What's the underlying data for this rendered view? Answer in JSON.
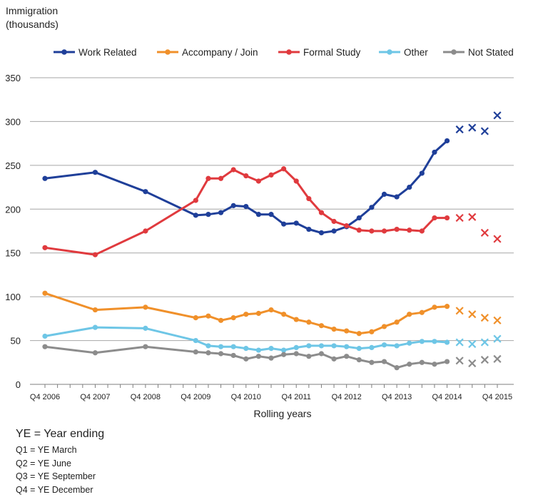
{
  "chart_data": {
    "type": "line",
    "ylabel": [
      "Immigration",
      "(thousands)"
    ],
    "xlabel": "Rolling years",
    "ylim": [
      0,
      350
    ],
    "yticks": [
      0,
      50,
      100,
      150,
      200,
      250,
      300,
      350
    ],
    "grid": "horizontal",
    "legend_position": "top",
    "x_tick_labels": [
      "Q4 2006",
      "Q4 2007",
      "Q4 2008",
      "Q4 2009",
      "Q4 2010",
      "Q4 2011",
      "Q4 2012",
      "Q4 2013",
      "Q4 2014",
      "Q4 2015"
    ],
    "x_tick_positions": [
      0,
      4,
      8,
      12,
      16,
      20,
      24,
      28,
      32,
      36
    ],
    "series": [
      {
        "name": "Work Related",
        "color": "#1f3f99",
        "points": [
          [
            0,
            235
          ],
          [
            4,
            242
          ],
          [
            8,
            220
          ],
          [
            12,
            193
          ],
          [
            13,
            194
          ],
          [
            14,
            196
          ],
          [
            15,
            204
          ],
          [
            16,
            203
          ],
          [
            17,
            194
          ],
          [
            18,
            194
          ],
          [
            19,
            183
          ],
          [
            20,
            184
          ],
          [
            21,
            177
          ],
          [
            22,
            173
          ],
          [
            23,
            175
          ],
          [
            24,
            180
          ],
          [
            25,
            190
          ],
          [
            26,
            202
          ],
          [
            27,
            217
          ],
          [
            28,
            214
          ],
          [
            29,
            225
          ],
          [
            30,
            241
          ],
          [
            31,
            265
          ],
          [
            32,
            278
          ]
        ],
        "projected": [
          [
            33,
            291
          ],
          [
            34,
            293
          ],
          [
            35,
            289
          ],
          [
            36,
            307
          ]
        ]
      },
      {
        "name": "Accompany / Join",
        "color": "#f0902a",
        "points": [
          [
            0,
            104
          ],
          [
            4,
            85
          ],
          [
            8,
            88
          ],
          [
            12,
            76
          ],
          [
            13,
            78
          ],
          [
            14,
            73
          ],
          [
            15,
            76
          ],
          [
            16,
            80
          ],
          [
            17,
            81
          ],
          [
            18,
            85
          ],
          [
            19,
            80
          ],
          [
            20,
            74
          ],
          [
            21,
            71
          ],
          [
            22,
            67
          ],
          [
            23,
            63
          ],
          [
            24,
            61
          ],
          [
            25,
            58
          ],
          [
            26,
            60
          ],
          [
            27,
            66
          ],
          [
            28,
            71
          ],
          [
            29,
            80
          ],
          [
            30,
            82
          ],
          [
            31,
            88
          ],
          [
            32,
            89
          ]
        ],
        "projected": [
          [
            33,
            84
          ],
          [
            34,
            80
          ],
          [
            35,
            76
          ],
          [
            36,
            73
          ]
        ]
      },
      {
        "name": "Formal Study",
        "color": "#e03a3e",
        "points": [
          [
            0,
            156
          ],
          [
            4,
            148
          ],
          [
            8,
            175
          ],
          [
            12,
            210
          ],
          [
            13,
            235
          ],
          [
            14,
            235
          ],
          [
            15,
            245
          ],
          [
            16,
            238
          ],
          [
            17,
            232
          ],
          [
            18,
            239
          ],
          [
            19,
            246
          ],
          [
            20,
            232
          ],
          [
            21,
            212
          ],
          [
            22,
            196
          ],
          [
            23,
            186
          ],
          [
            24,
            181
          ],
          [
            25,
            176
          ],
          [
            26,
            175
          ],
          [
            27,
            175
          ],
          [
            28,
            177
          ],
          [
            29,
            176
          ],
          [
            30,
            175
          ],
          [
            31,
            190
          ],
          [
            32,
            190
          ]
        ],
        "projected": [
          [
            33,
            190
          ],
          [
            34,
            191
          ],
          [
            35,
            173
          ],
          [
            36,
            166
          ]
        ]
      },
      {
        "name": "Other",
        "color": "#6ec6e6",
        "points": [
          [
            0,
            55
          ],
          [
            4,
            65
          ],
          [
            8,
            64
          ],
          [
            12,
            50
          ],
          [
            13,
            44
          ],
          [
            14,
            43
          ],
          [
            15,
            43
          ],
          [
            16,
            41
          ],
          [
            17,
            39
          ],
          [
            18,
            41
          ],
          [
            19,
            39
          ],
          [
            20,
            42
          ],
          [
            21,
            44
          ],
          [
            22,
            44
          ],
          [
            23,
            44
          ],
          [
            24,
            43
          ],
          [
            25,
            41
          ],
          [
            26,
            42
          ],
          [
            27,
            45
          ],
          [
            28,
            44
          ],
          [
            29,
            47
          ],
          [
            30,
            49
          ],
          [
            31,
            49
          ],
          [
            32,
            48
          ]
        ],
        "projected": [
          [
            33,
            48
          ],
          [
            34,
            46
          ],
          [
            35,
            48
          ],
          [
            36,
            52
          ]
        ]
      },
      {
        "name": "Not Stated",
        "color": "#8c8c8c",
        "points": [
          [
            0,
            43
          ],
          [
            4,
            36
          ],
          [
            8,
            43
          ],
          [
            12,
            37
          ],
          [
            13,
            36
          ],
          [
            14,
            35
          ],
          [
            15,
            33
          ],
          [
            16,
            29
          ],
          [
            17,
            32
          ],
          [
            18,
            30
          ],
          [
            19,
            34
          ],
          [
            20,
            35
          ],
          [
            21,
            32
          ],
          [
            22,
            35
          ],
          [
            23,
            29
          ],
          [
            24,
            32
          ],
          [
            25,
            28
          ],
          [
            26,
            25
          ],
          [
            27,
            26
          ],
          [
            28,
            19
          ],
          [
            29,
            23
          ],
          [
            30,
            25
          ],
          [
            31,
            23
          ],
          [
            32,
            26
          ]
        ],
        "projected": [
          [
            33,
            27
          ],
          [
            34,
            24
          ],
          [
            35,
            28
          ],
          [
            36,
            29
          ]
        ]
      }
    ]
  },
  "notes": {
    "heading": "YE = Year ending",
    "items": [
      "Q1 = YE March",
      "Q2 = YE June",
      "Q3 = YE September",
      "Q4 = YE December"
    ]
  }
}
